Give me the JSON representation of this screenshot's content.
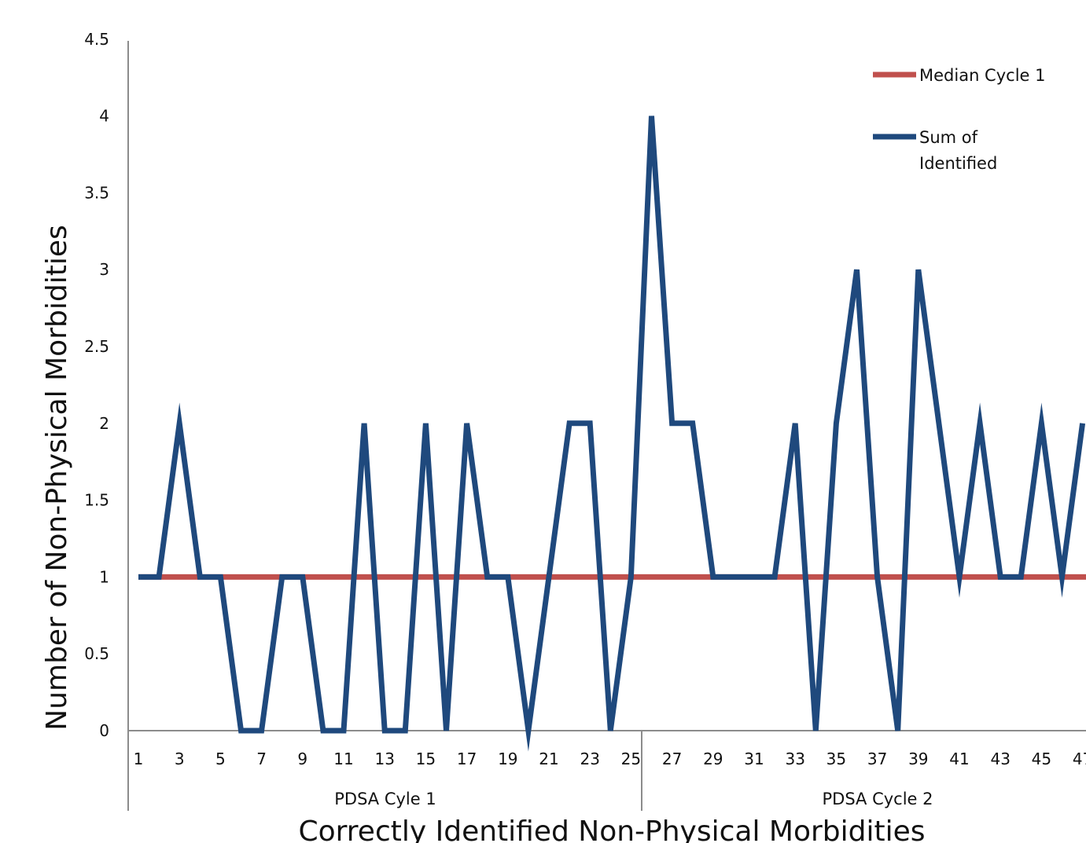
{
  "chart_data": {
    "type": "line",
    "title": "",
    "xlabel": "Correctly Identified  Non-Physical Morbidities",
    "ylabel": "Number of Non-Physical Morbidities",
    "ylim": [
      0,
      4.5
    ],
    "yticks": [
      "0",
      "0.5",
      "1",
      "1.5",
      "2",
      "2.5",
      "3",
      "3.5",
      "4",
      "4.5"
    ],
    "xticks": [
      "1",
      "3",
      "5",
      "7",
      "9",
      "11",
      "13",
      "15",
      "17",
      "19",
      "21",
      "23",
      "25",
      "27",
      "29",
      "31",
      "33",
      "35",
      "37",
      "39",
      "41",
      "43",
      "45",
      "47"
    ],
    "groups": [
      {
        "label": "PDSA Cyle 1",
        "from": 1,
        "to": 25
      },
      {
        "label": "PDSA Cycle 2",
        "from": 26,
        "to": 49
      }
    ],
    "grid": false,
    "legend_position": "top-right",
    "series": [
      {
        "name": "Median Cycle 1",
        "color": "#c0504d",
        "x": [
          1,
          49
        ],
        "values": [
          1,
          1
        ]
      },
      {
        "name": "Sum of Identified",
        "color": "#1f497d",
        "x": [
          1,
          2,
          3,
          4,
          5,
          6,
          7,
          8,
          9,
          10,
          11,
          12,
          13,
          14,
          15,
          16,
          17,
          18,
          19,
          20,
          21,
          22,
          23,
          24,
          25,
          26,
          27,
          28,
          29,
          30,
          31,
          32,
          33,
          34,
          35,
          36,
          37,
          38,
          39,
          40,
          41,
          42,
          43,
          44,
          45,
          46,
          47
        ],
        "values": [
          1,
          1,
          2,
          1,
          1,
          0,
          0,
          1,
          1,
          0,
          0,
          2,
          0,
          0,
          2,
          0,
          2,
          1,
          1,
          0,
          1,
          2,
          2,
          0,
          1,
          4,
          2,
          2,
          1,
          1,
          1,
          1,
          2,
          0,
          2,
          3,
          1,
          0,
          3,
          2,
          1,
          2,
          1,
          1,
          2,
          1,
          2
        ]
      }
    ]
  }
}
